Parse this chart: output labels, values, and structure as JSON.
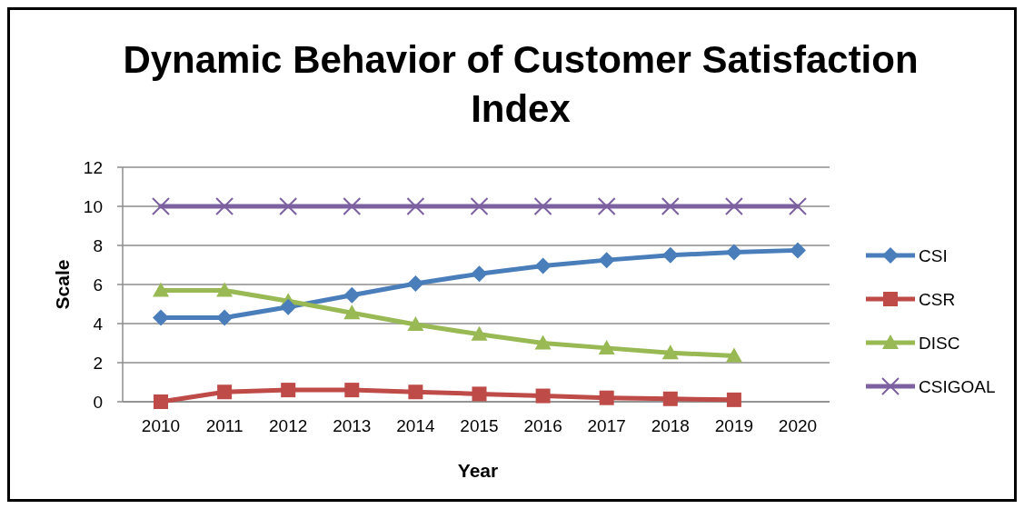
{
  "chart_data": {
    "type": "line",
    "title": "Dynamic Behavior of Customer Satisfaction Index",
    "xlabel": "Year",
    "ylabel": "Scale",
    "categories": [
      "2010",
      "2011",
      "2012",
      "2013",
      "2014",
      "2015",
      "2016",
      "2017",
      "2018",
      "2019",
      "2020"
    ],
    "ylim": [
      0,
      12
    ],
    "yticks": [
      0,
      2,
      4,
      6,
      8,
      10,
      12
    ],
    "grid": "y",
    "legend": "right",
    "series": [
      {
        "name": "CSI",
        "color": "#4a7ebb",
        "marker": "diamond",
        "values": [
          4.3,
          4.3,
          4.85,
          5.45,
          6.05,
          6.55,
          6.95,
          7.25,
          7.5,
          7.65,
          7.75
        ]
      },
      {
        "name": "CSR",
        "color": "#be4b48",
        "marker": "square",
        "values": [
          0,
          0.5,
          0.6,
          0.6,
          0.5,
          0.4,
          0.3,
          0.2,
          0.15,
          0.1,
          null
        ]
      },
      {
        "name": "DISC",
        "color": "#98b954",
        "marker": "triangle",
        "values": [
          5.7,
          5.7,
          5.15,
          4.55,
          3.95,
          3.45,
          3.0,
          2.75,
          2.5,
          2.35,
          null
        ]
      },
      {
        "name": "CSIGOAL",
        "color": "#7d60a0",
        "marker": "cross",
        "values": [
          10,
          10,
          10,
          10,
          10,
          10,
          10,
          10,
          10,
          10,
          10
        ]
      }
    ]
  }
}
